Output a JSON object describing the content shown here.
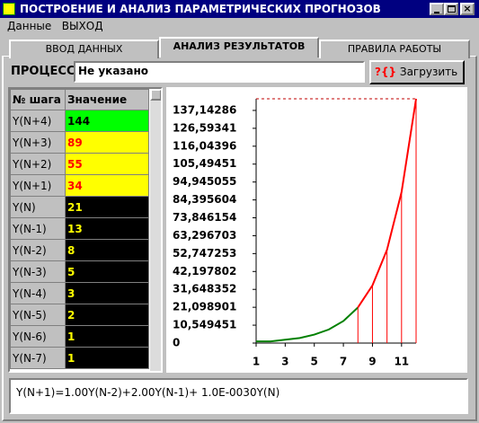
{
  "window": {
    "title": "ПОСТРОЕНИЕ И АНАЛИЗ ПАРАМЕТРИЧЕСКИХ ПРОГНОЗОВ"
  },
  "menu": [
    "Данные",
    "ВЫХОД"
  ],
  "tabs": {
    "items": [
      "ВВОД ДАННЫХ",
      "АНАЛИЗ РЕЗУЛЬТАТОВ",
      "ПРАВИЛА РАБОТЫ"
    ],
    "active": 1
  },
  "process": {
    "label": "ПРОЦЕСС",
    "value": "Не указано",
    "button_icon": "?{}",
    "button": "Загрузить"
  },
  "table": {
    "headers": [
      "№ шага",
      "Значение"
    ],
    "rows": [
      {
        "label": "Y(N+4)",
        "value": 144,
        "bg": "#00ff00",
        "fg": "#000000"
      },
      {
        "label": "Y(N+3)",
        "value": 89,
        "bg": "#ffff00",
        "fg": "#ff0000"
      },
      {
        "label": "Y(N+2)",
        "value": 55,
        "bg": "#ffff00",
        "fg": "#ff0000"
      },
      {
        "label": "Y(N+1)",
        "value": 34,
        "bg": "#ffff00",
        "fg": "#ff0000"
      },
      {
        "label": "Y(N)",
        "value": 21,
        "bg": "#000000",
        "fg": "#ffff00"
      },
      {
        "label": "Y(N-1)",
        "value": 13,
        "bg": "#000000",
        "fg": "#ffff00"
      },
      {
        "label": "Y(N-2)",
        "value": 8,
        "bg": "#000000",
        "fg": "#ffff00"
      },
      {
        "label": "Y(N-3)",
        "value": 5,
        "bg": "#000000",
        "fg": "#ffff00"
      },
      {
        "label": "Y(N-4)",
        "value": 3,
        "bg": "#000000",
        "fg": "#ffff00"
      },
      {
        "label": "Y(N-5)",
        "value": 2,
        "bg": "#000000",
        "fg": "#ffff00"
      },
      {
        "label": "Y(N-6)",
        "value": 1,
        "bg": "#000000",
        "fg": "#ffff00"
      },
      {
        "label": "Y(N-7)",
        "value": 1,
        "bg": "#000000",
        "fg": "#ffff00"
      }
    ]
  },
  "chart_data": {
    "type": "line",
    "x": [
      1,
      2,
      3,
      4,
      5,
      6,
      7,
      8,
      9,
      10,
      11,
      12
    ],
    "series": [
      {
        "color": "#008000",
        "values": [
          1,
          1,
          2,
          3,
          5,
          8,
          13,
          21,
          null,
          null,
          null,
          null
        ]
      },
      {
        "color": "#ff0000",
        "values": [
          null,
          null,
          null,
          null,
          null,
          null,
          null,
          21,
          34,
          55,
          89,
          144
        ],
        "drop_lines": true
      }
    ],
    "xlim": [
      1,
      12
    ],
    "ylim": [
      0,
      144
    ],
    "xticks": [
      1,
      3,
      5,
      7,
      9,
      11
    ],
    "yticks": [
      0,
      {
        "value": 10.549451,
        "label": "10,549451"
      },
      {
        "value": 21.098901,
        "label": "21,098901"
      },
      {
        "value": 31.648352,
        "label": "31,648352"
      },
      {
        "value": 42.197802,
        "label": "42,197802"
      },
      {
        "value": 52.747253,
        "label": "52,747253"
      },
      {
        "value": 63.296703,
        "label": "63,296703"
      },
      {
        "value": 73.846154,
        "label": "73,846154"
      },
      {
        "value": 84.395604,
        "label": "84,395604"
      },
      {
        "value": 94.945055,
        "label": "94,945055"
      },
      {
        "value": 105.49451,
        "label": "105,49451"
      },
      {
        "value": 116.04396,
        "label": "116,04396"
      },
      {
        "value": 126.59341,
        "label": "126,59341"
      },
      {
        "value": 137.14286,
        "label": "137,14286"
      }
    ]
  },
  "formula": "Y(N+1)=1.00Y(N-2)+2.00Y(N-1)+ 1.0E-0030Y(N)"
}
